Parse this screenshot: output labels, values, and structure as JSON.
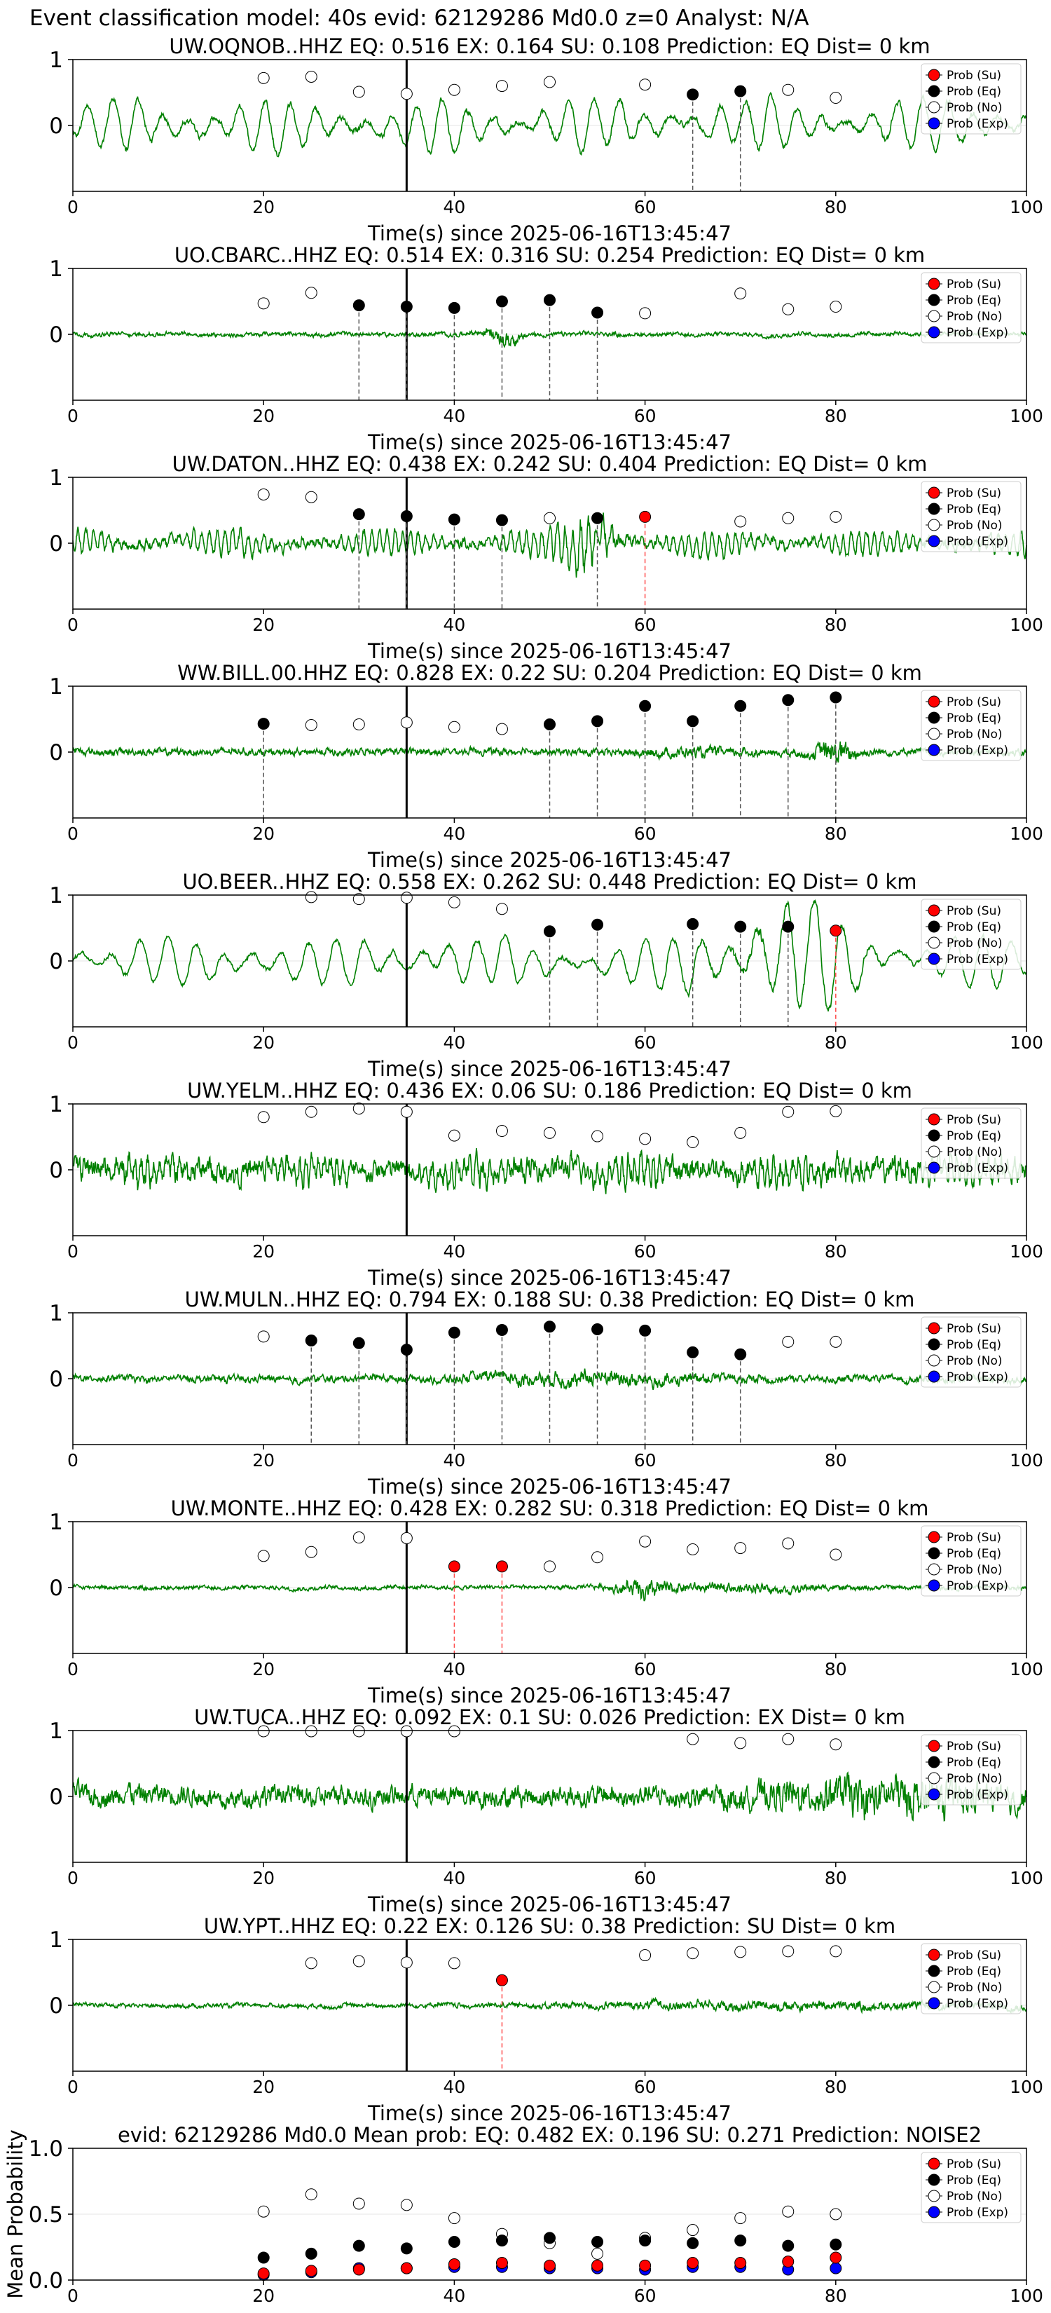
{
  "suptitle": "Event classification model: 40s evid: 62129286 Md0.0 z=0 Analyst: N/A",
  "legend": [
    "Prob (Su)",
    "Prob (Eq)",
    "Prob (No)",
    "Prob (Exp)"
  ],
  "colors": {
    "trace": "#008000",
    "su": "#ff0000",
    "eq": "#000000",
    "no": "#ffffff",
    "exp": "#0000ff",
    "su_line": "#ff4d4d",
    "eq_line": "#555555"
  },
  "xlabel": "Time(s) since 2025-06-16T13:45:47",
  "xlim": [
    0,
    100
  ],
  "xticks": [
    0,
    20,
    40,
    60,
    80,
    100
  ],
  "trace_ylim": [
    -1,
    1
  ],
  "trace_yticks": [
    0,
    1
  ],
  "pick_time": 35,
  "chart_data": [
    {
      "type": "line",
      "title": "UW.OQNOB..HHZ   EQ: 0.516  EX: 0.164  SU: 0.108   Prediction: EQ    Dist= 0 km",
      "points": [
        {
          "t": 20,
          "c": "no",
          "p": 0.72
        },
        {
          "t": 25,
          "c": "no",
          "p": 0.74
        },
        {
          "t": 30,
          "c": "no",
          "p": 0.51
        },
        {
          "t": 35,
          "c": "no",
          "p": 0.48
        },
        {
          "t": 40,
          "c": "no",
          "p": 0.54
        },
        {
          "t": 45,
          "c": "no",
          "p": 0.6
        },
        {
          "t": 50,
          "c": "no",
          "p": 0.66
        },
        {
          "t": 60,
          "c": "no",
          "p": 0.62
        },
        {
          "t": 65,
          "c": "eq",
          "p": 0.47
        },
        {
          "t": 70,
          "c": "eq",
          "p": 0.52
        },
        {
          "t": 75,
          "c": "no",
          "p": 0.54
        },
        {
          "t": 80,
          "c": "no",
          "p": 0.42
        }
      ]
    },
    {
      "type": "line",
      "title": "UO.CBARC..HHZ   EQ: 0.514  EX: 0.316  SU: 0.254   Prediction: EQ    Dist= 0 km",
      "points": [
        {
          "t": 20,
          "c": "no",
          "p": 0.47
        },
        {
          "t": 25,
          "c": "no",
          "p": 0.63
        },
        {
          "t": 30,
          "c": "eq",
          "p": 0.44
        },
        {
          "t": 35,
          "c": "eq",
          "p": 0.42
        },
        {
          "t": 40,
          "c": "eq",
          "p": 0.4
        },
        {
          "t": 45,
          "c": "eq",
          "p": 0.5
        },
        {
          "t": 50,
          "c": "eq",
          "p": 0.52
        },
        {
          "t": 55,
          "c": "eq",
          "p": 0.33
        },
        {
          "t": 60,
          "c": "no",
          "p": 0.32
        },
        {
          "t": 70,
          "c": "no",
          "p": 0.62
        },
        {
          "t": 75,
          "c": "no",
          "p": 0.38
        },
        {
          "t": 80,
          "c": "no",
          "p": 0.42
        }
      ]
    },
    {
      "type": "line",
      "title": "UW.DATON..HHZ   EQ: 0.438  EX: 0.242  SU: 0.404   Prediction: EQ    Dist= 0 km",
      "points": [
        {
          "t": 20,
          "c": "no",
          "p": 0.74
        },
        {
          "t": 25,
          "c": "no",
          "p": 0.7
        },
        {
          "t": 30,
          "c": "eq",
          "p": 0.44
        },
        {
          "t": 35,
          "c": "eq",
          "p": 0.41
        },
        {
          "t": 40,
          "c": "eq",
          "p": 0.36
        },
        {
          "t": 45,
          "c": "eq",
          "p": 0.35
        },
        {
          "t": 50,
          "c": "no",
          "p": 0.38
        },
        {
          "t": 55,
          "c": "eq",
          "p": 0.38
        },
        {
          "t": 60,
          "c": "su",
          "p": 0.4
        },
        {
          "t": 70,
          "c": "no",
          "p": 0.33
        },
        {
          "t": 75,
          "c": "no",
          "p": 0.38
        },
        {
          "t": 80,
          "c": "no",
          "p": 0.4
        }
      ]
    },
    {
      "type": "line",
      "title": "WW.BILL.00.HHZ   EQ: 0.828  EX: 0.22  SU: 0.204   Prediction: EQ    Dist= 0 km",
      "points": [
        {
          "t": 20,
          "c": "eq",
          "p": 0.43
        },
        {
          "t": 25,
          "c": "no",
          "p": 0.41
        },
        {
          "t": 30,
          "c": "no",
          "p": 0.42
        },
        {
          "t": 35,
          "c": "no",
          "p": 0.45
        },
        {
          "t": 40,
          "c": "no",
          "p": 0.38
        },
        {
          "t": 45,
          "c": "no",
          "p": 0.35
        },
        {
          "t": 50,
          "c": "eq",
          "p": 0.42
        },
        {
          "t": 55,
          "c": "eq",
          "p": 0.47
        },
        {
          "t": 60,
          "c": "eq",
          "p": 0.7
        },
        {
          "t": 65,
          "c": "eq",
          "p": 0.47
        },
        {
          "t": 70,
          "c": "eq",
          "p": 0.7
        },
        {
          "t": 75,
          "c": "eq",
          "p": 0.79
        },
        {
          "t": 80,
          "c": "eq",
          "p": 0.83
        }
      ]
    },
    {
      "type": "line",
      "title": "UO.BEER..HHZ   EQ: 0.558  EX: 0.262  SU: 0.448   Prediction: EQ    Dist= 0 km",
      "points": [
        {
          "t": 25,
          "c": "no",
          "p": 0.97
        },
        {
          "t": 30,
          "c": "no",
          "p": 0.94
        },
        {
          "t": 35,
          "c": "no",
          "p": 0.96
        },
        {
          "t": 40,
          "c": "no",
          "p": 0.89
        },
        {
          "t": 45,
          "c": "no",
          "p": 0.79
        },
        {
          "t": 50,
          "c": "eq",
          "p": 0.45
        },
        {
          "t": 55,
          "c": "eq",
          "p": 0.55
        },
        {
          "t": 65,
          "c": "eq",
          "p": 0.56
        },
        {
          "t": 70,
          "c": "eq",
          "p": 0.52
        },
        {
          "t": 75,
          "c": "eq",
          "p": 0.52
        },
        {
          "t": 80,
          "c": "su",
          "p": 0.46
        }
      ]
    },
    {
      "type": "line",
      "title": "UW.YELM..HHZ   EQ: 0.436  EX: 0.06  SU: 0.186   Prediction: EQ    Dist= 0 km",
      "points": [
        {
          "t": 20,
          "c": "no",
          "p": 0.8
        },
        {
          "t": 25,
          "c": "no",
          "p": 0.88
        },
        {
          "t": 30,
          "c": "no",
          "p": 0.93
        },
        {
          "t": 35,
          "c": "no",
          "p": 0.88
        },
        {
          "t": 40,
          "c": "no",
          "p": 0.52
        },
        {
          "t": 45,
          "c": "no",
          "p": 0.59
        },
        {
          "t": 50,
          "c": "no",
          "p": 0.56
        },
        {
          "t": 55,
          "c": "no",
          "p": 0.51
        },
        {
          "t": 60,
          "c": "no",
          "p": 0.47
        },
        {
          "t": 65,
          "c": "no",
          "p": 0.42
        },
        {
          "t": 70,
          "c": "no",
          "p": 0.56
        },
        {
          "t": 75,
          "c": "no",
          "p": 0.88
        },
        {
          "t": 80,
          "c": "no",
          "p": 0.89
        }
      ]
    },
    {
      "type": "line",
      "title": "UW.MULN..HHZ   EQ: 0.794  EX: 0.188  SU: 0.38   Prediction: EQ    Dist= 0 km",
      "points": [
        {
          "t": 20,
          "c": "no",
          "p": 0.64
        },
        {
          "t": 25,
          "c": "eq",
          "p": 0.58
        },
        {
          "t": 30,
          "c": "eq",
          "p": 0.54
        },
        {
          "t": 35,
          "c": "eq",
          "p": 0.44
        },
        {
          "t": 40,
          "c": "eq",
          "p": 0.7
        },
        {
          "t": 45,
          "c": "eq",
          "p": 0.74
        },
        {
          "t": 50,
          "c": "eq",
          "p": 0.79
        },
        {
          "t": 55,
          "c": "eq",
          "p": 0.75
        },
        {
          "t": 60,
          "c": "eq",
          "p": 0.73
        },
        {
          "t": 65,
          "c": "eq",
          "p": 0.4
        },
        {
          "t": 70,
          "c": "eq",
          "p": 0.37
        },
        {
          "t": 75,
          "c": "no",
          "p": 0.56
        },
        {
          "t": 80,
          "c": "no",
          "p": 0.56
        }
      ]
    },
    {
      "type": "line",
      "title": "UW.MONTE..HHZ   EQ: 0.428  EX: 0.282  SU: 0.318   Prediction: EQ    Dist= 0 km",
      "points": [
        {
          "t": 20,
          "c": "no",
          "p": 0.48
        },
        {
          "t": 25,
          "c": "no",
          "p": 0.54
        },
        {
          "t": 30,
          "c": "no",
          "p": 0.76
        },
        {
          "t": 35,
          "c": "no",
          "p": 0.75
        },
        {
          "t": 40,
          "c": "su",
          "p": 0.32
        },
        {
          "t": 45,
          "c": "su",
          "p": 0.32
        },
        {
          "t": 50,
          "c": "no",
          "p": 0.32
        },
        {
          "t": 55,
          "c": "no",
          "p": 0.46
        },
        {
          "t": 60,
          "c": "no",
          "p": 0.7
        },
        {
          "t": 65,
          "c": "no",
          "p": 0.58
        },
        {
          "t": 70,
          "c": "no",
          "p": 0.6
        },
        {
          "t": 75,
          "c": "no",
          "p": 0.67
        },
        {
          "t": 80,
          "c": "no",
          "p": 0.5
        }
      ]
    },
    {
      "type": "line",
      "title": "UW.TUCA..HHZ   EQ: 0.092  EX: 0.1  SU: 0.026   Prediction: EX    Dist= 0 km",
      "points": [
        {
          "t": 20,
          "c": "no",
          "p": 0.99
        },
        {
          "t": 25,
          "c": "no",
          "p": 0.99
        },
        {
          "t": 30,
          "c": "no",
          "p": 0.99
        },
        {
          "t": 35,
          "c": "no",
          "p": 0.99
        },
        {
          "t": 40,
          "c": "no",
          "p": 0.99
        },
        {
          "t": 65,
          "c": "no",
          "p": 0.87
        },
        {
          "t": 70,
          "c": "no",
          "p": 0.81
        },
        {
          "t": 75,
          "c": "no",
          "p": 0.87
        },
        {
          "t": 80,
          "c": "no",
          "p": 0.79
        }
      ]
    },
    {
      "type": "line",
      "title": "UW.YPT..HHZ   EQ: 0.22  EX: 0.126  SU: 0.38   Prediction: SU    Dist= 0 km",
      "points": [
        {
          "t": 25,
          "c": "no",
          "p": 0.64
        },
        {
          "t": 30,
          "c": "no",
          "p": 0.67
        },
        {
          "t": 35,
          "c": "no",
          "p": 0.65
        },
        {
          "t": 40,
          "c": "no",
          "p": 0.64
        },
        {
          "t": 45,
          "c": "su",
          "p": 0.38
        },
        {
          "t": 60,
          "c": "no",
          "p": 0.76
        },
        {
          "t": 65,
          "c": "no",
          "p": 0.79
        },
        {
          "t": 70,
          "c": "no",
          "p": 0.81
        },
        {
          "t": 75,
          "c": "no",
          "p": 0.82
        },
        {
          "t": 80,
          "c": "no",
          "p": 0.82
        }
      ]
    },
    {
      "type": "scatter",
      "title": "evid: 62129286  Md0.0   Mean prob:   EQ: 0.482  EX: 0.196  SU: 0.271   Prediction: NOISE2",
      "ylabel": "Mean Probability",
      "ylim": [
        0,
        1
      ],
      "yticks": [
        0.0,
        0.5,
        1.0
      ],
      "x": [
        20,
        25,
        30,
        35,
        40,
        45,
        50,
        55,
        60,
        65,
        70,
        75,
        80
      ],
      "series": [
        {
          "name": "Prob (No)",
          "values": [
            0.52,
            0.65,
            0.58,
            0.57,
            0.47,
            0.35,
            0.28,
            0.2,
            0.32,
            0.38,
            0.47,
            0.52,
            0.5
          ]
        },
        {
          "name": "Prob (Eq)",
          "values": [
            0.17,
            0.2,
            0.26,
            0.24,
            0.29,
            0.3,
            0.32,
            0.29,
            0.3,
            0.28,
            0.3,
            0.26,
            0.27
          ]
        },
        {
          "name": "Prob (Exp)",
          "values": [
            0.04,
            0.06,
            0.09,
            0.09,
            0.1,
            0.1,
            0.09,
            0.09,
            0.08,
            0.1,
            0.1,
            0.08,
            0.09
          ]
        },
        {
          "name": "Prob (Su)",
          "values": [
            0.05,
            0.07,
            0.08,
            0.09,
            0.12,
            0.13,
            0.11,
            0.11,
            0.11,
            0.13,
            0.13,
            0.14,
            0.17
          ]
        }
      ]
    }
  ]
}
